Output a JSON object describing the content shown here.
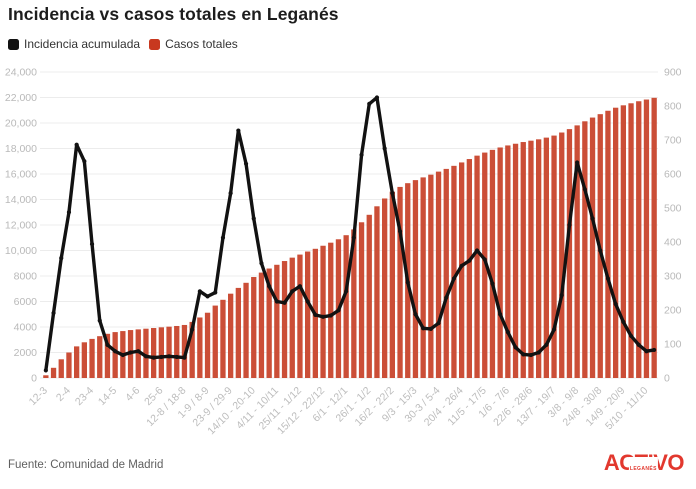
{
  "header": {
    "title": "Incidencia vs casos totales en Leganés"
  },
  "legend": [
    {
      "label": "Incidencia acumulada",
      "color": "#121212"
    },
    {
      "label": "Casos totales",
      "color": "#c8381f"
    }
  ],
  "footer": {
    "source": "Fuente: Comunidad de Madrid",
    "logo_text": "ACTIVO",
    "logo_sub": "LEGANÉS",
    "logo_color": "#e2382e"
  },
  "chart_data": {
    "type": "bar",
    "subtype": "combo bar+line, dual axis",
    "title": "Incidencia vs casos totales en Leganés",
    "xlabel": "",
    "ylabel_left": "",
    "ylabel_right": "",
    "grid": true,
    "legend_position": "top-left",
    "categories": [
      "12-3",
      "2-4",
      "23-4",
      "14-5",
      "4-6",
      "25-6",
      "12-8 / 18-8",
      "1-9 / 8-9",
      "23-9 / 29-9",
      "14/10 - 20-10",
      "4/11 - 10/11",
      "25/11 - 1/12",
      "15/12 - 22/12",
      "6/1 - 12/1",
      "26/1 - 1/2",
      "16/2 - 22/2",
      "9/3 - 15/3",
      "30-3 / 5-4",
      "20/4 - 26/4",
      "11/5 - 17/5",
      "1/6 - 7/6",
      "22/6 - 28/6",
      "13/7 - 19/7",
      "3/8 - 9/8",
      "24/8 - 30/8",
      "14/9 - 20/9",
      "5/10 - 11/10"
    ],
    "category_every_n_bars": 3,
    "n_points": 80,
    "left_axis": {
      "min": 0,
      "max": 24000,
      "tick_step": 2000,
      "tick_labels_bottom_up": [
        "0",
        "2000",
        "4000",
        "6000",
        "8000",
        "10,000",
        "12,000",
        "14,000",
        "16,000",
        "18,000",
        "20,000",
        "22,000",
        "24,000"
      ]
    },
    "right_axis": {
      "min": 0,
      "max": 900,
      "tick_step": 100,
      "tick_labels_bottom_up": [
        "0",
        "100",
        "200",
        "300",
        "400",
        "500",
        "600",
        "700",
        "800",
        "900"
      ]
    },
    "series": [
      {
        "name": "Incidencia acumulada",
        "type": "line",
        "axis": "left",
        "color": "#121212",
        "values": [
          600,
          5100,
          9400,
          13000,
          18300,
          17000,
          10500,
          4500,
          2600,
          2100,
          1800,
          2000,
          2100,
          1700,
          1600,
          1650,
          1700,
          1650,
          1600,
          3800,
          6800,
          6400,
          6700,
          11000,
          14500,
          19400,
          16800,
          12500,
          9000,
          7200,
          6000,
          5900,
          6800,
          7200,
          6000,
          4950,
          4800,
          4900,
          5300,
          6800,
          11000,
          17500,
          21500,
          22000,
          18000,
          14500,
          11500,
          7500,
          5000,
          3900,
          3850,
          4300,
          6300,
          7800,
          8800,
          9200,
          10000,
          9300,
          7400,
          5000,
          3600,
          2400,
          1850,
          1800,
          2000,
          2600,
          3800,
          6500,
          12000,
          16900,
          14800,
          12500,
          10000,
          7800,
          5800,
          4400,
          3300,
          2600,
          2100,
          2200
        ]
      },
      {
        "name": "Casos totales",
        "type": "bar",
        "axis": "right",
        "color": "#cb4e37",
        "values": [
          8,
          30,
          55,
          75,
          93,
          105,
          115,
          123,
          130,
          135,
          138,
          141,
          143,
          145,
          147,
          149,
          151,
          153,
          156,
          165,
          178,
          192,
          213,
          230,
          248,
          265,
          280,
          297,
          310,
          322,
          333,
          344,
          354,
          363,
          372,
          380,
          389,
          398,
          408,
          420,
          437,
          458,
          480,
          505,
          528,
          548,
          562,
          573,
          582,
          590,
          598,
          607,
          615,
          624,
          634,
          644,
          654,
          663,
          671,
          678,
          684,
          689,
          694,
          698,
          702,
          707,
          713,
          722,
          732,
          743,
          755,
          766,
          776,
          786,
          795,
          802,
          808,
          814,
          819,
          824
        ]
      }
    ]
  }
}
